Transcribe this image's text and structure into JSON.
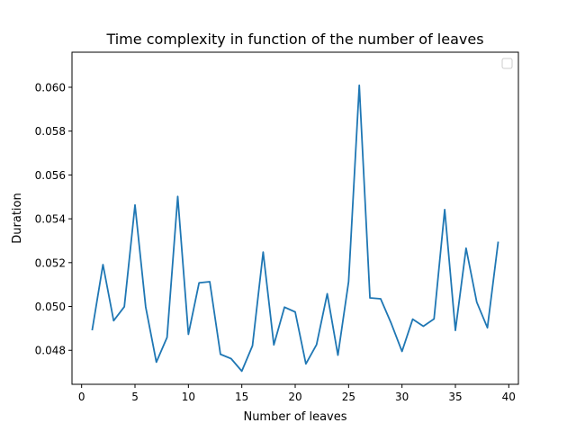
{
  "chart_data": {
    "type": "line",
    "title": "Time complexity in function of the number of leaves",
    "xlabel": "Number of leaves",
    "ylabel": "Duration",
    "xlim": [
      -0.9,
      40.9
    ],
    "ylim": [
      0.04645,
      0.0616
    ],
    "xticks": [
      0,
      5,
      10,
      15,
      20,
      25,
      30,
      35,
      40
    ],
    "xtick_labels": [
      "0",
      "5",
      "10",
      "15",
      "20",
      "25",
      "30",
      "35",
      "40"
    ],
    "yticks": [
      0.048,
      0.05,
      0.052,
      0.054,
      0.056,
      0.058,
      0.06
    ],
    "ytick_labels": [
      "0.048",
      "0.050",
      "0.052",
      "0.054",
      "0.056",
      "0.058",
      "0.060"
    ],
    "grid": false,
    "legend": "top-right (empty)",
    "series": [
      {
        "color": "#1f77b4",
        "x": [
          1,
          2,
          3,
          4,
          5,
          6,
          7,
          8,
          9,
          10,
          11,
          12,
          13,
          14,
          15,
          16,
          17,
          18,
          19,
          20,
          21,
          22,
          23,
          24,
          25,
          26,
          27,
          28,
          29,
          30,
          31,
          32,
          33,
          34,
          35,
          36,
          37,
          38,
          39
        ],
        "y": [
          0.04895,
          0.05191,
          0.04935,
          0.04999,
          0.05463,
          0.04998,
          0.04746,
          0.04859,
          0.05502,
          0.04873,
          0.05108,
          0.05113,
          0.04782,
          0.04762,
          0.04705,
          0.04821,
          0.05248,
          0.04825,
          0.04997,
          0.04975,
          0.04738,
          0.04826,
          0.05058,
          0.04778,
          0.05113,
          0.06009,
          0.05039,
          0.05035,
          0.04922,
          0.04795,
          0.04942,
          0.0491,
          0.04943,
          0.05442,
          0.04891,
          0.05266,
          0.0502,
          0.04903,
          0.05292
        ]
      }
    ]
  }
}
